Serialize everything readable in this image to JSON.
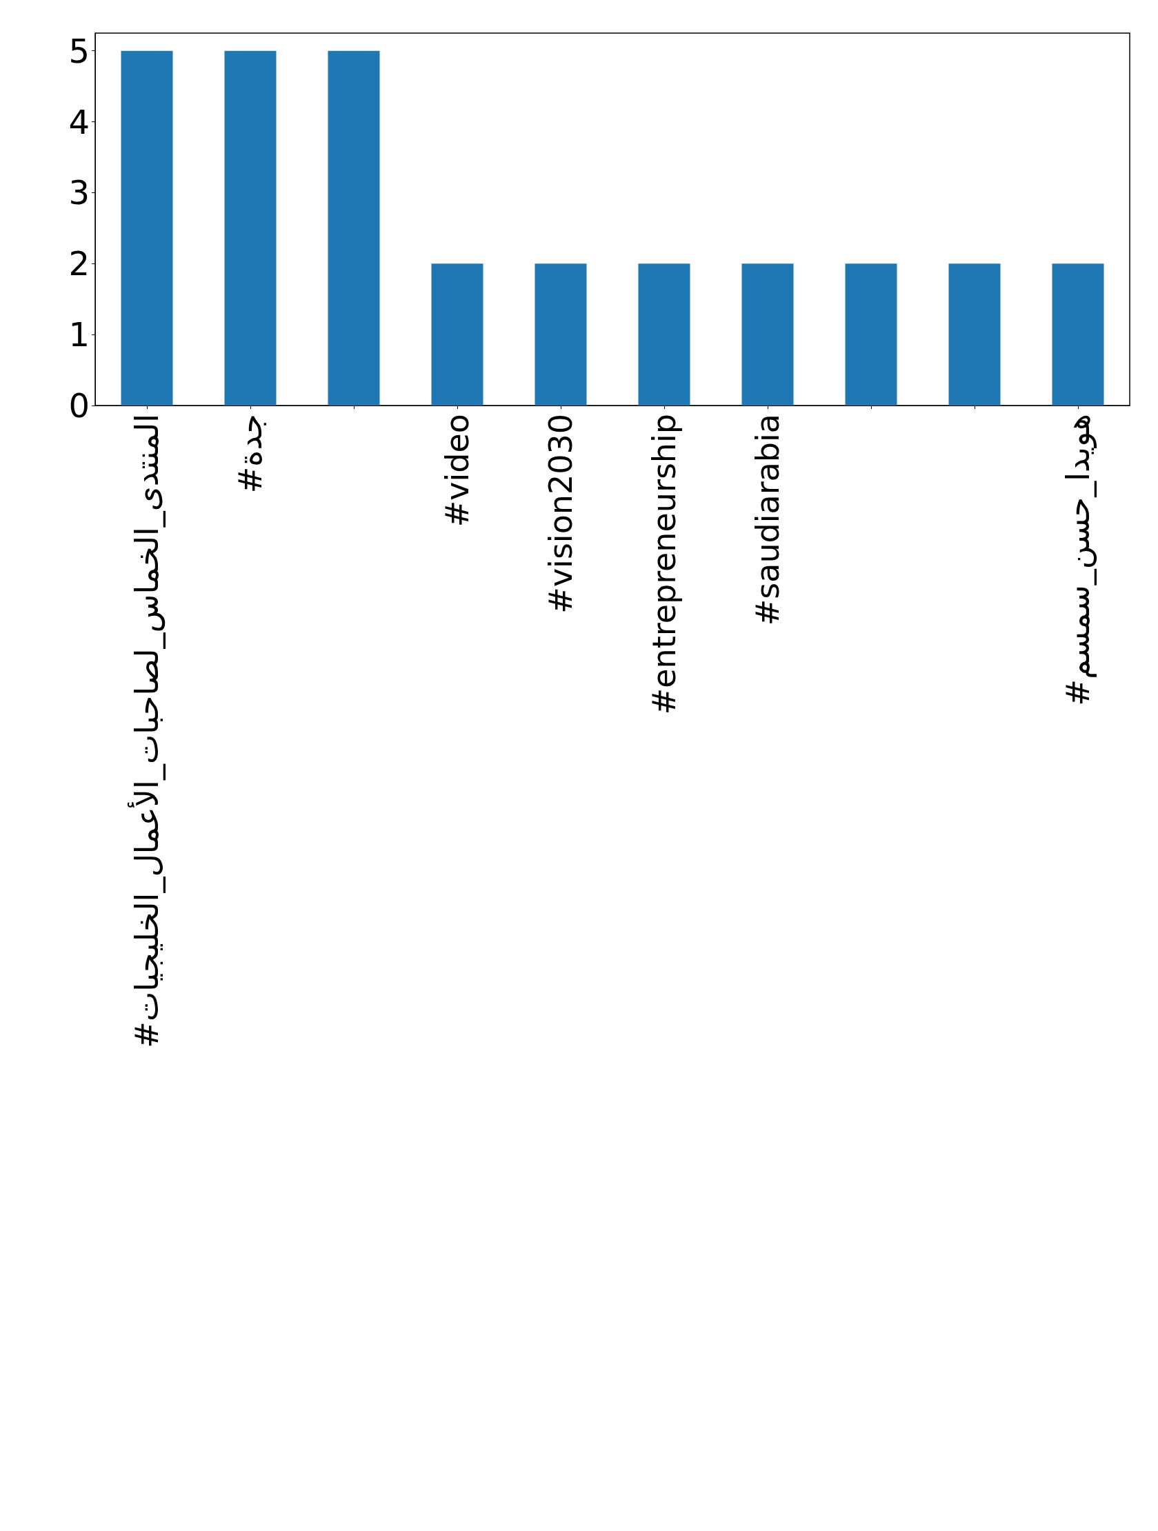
{
  "chart_data": {
    "type": "bar",
    "categories": [
      "#المنتدى_الخماس_لصاحبات_الأعمال_الخليجيات",
      "#جدة",
      null,
      "#video",
      "#vision2030",
      "#entrepreneurship",
      "#saudiarabia",
      null,
      null,
      "#هويدا_حسن_سمسم"
    ],
    "values": [
      5,
      5,
      5,
      2,
      2,
      2,
      2,
      2,
      2,
      2
    ],
    "color": "#1f77b4",
    "ylim": [
      0,
      5.25
    ],
    "yticks": [
      0,
      1,
      2,
      3,
      4,
      5
    ]
  }
}
